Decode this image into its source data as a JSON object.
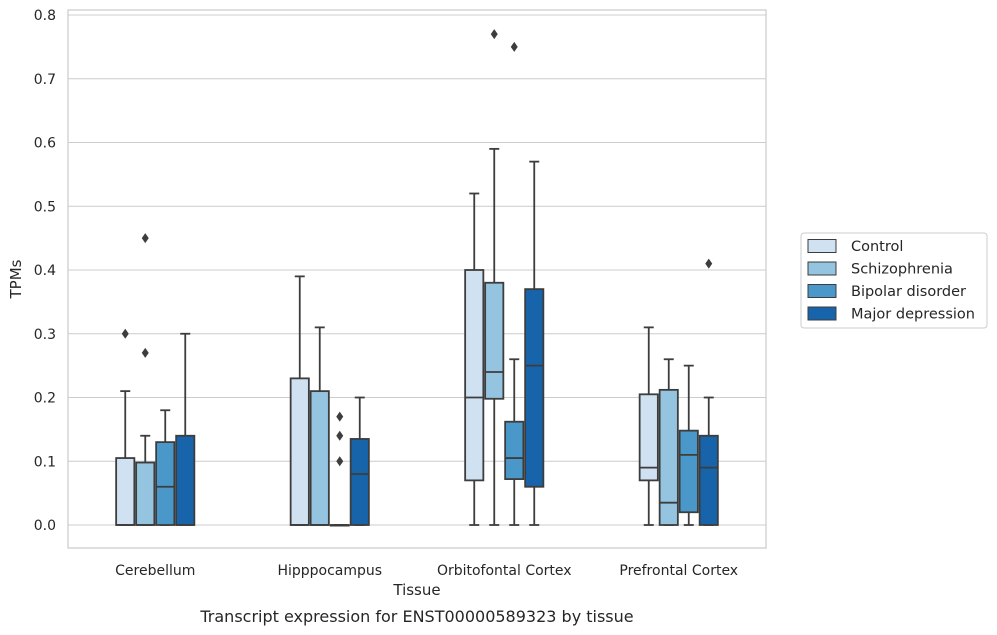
{
  "chart_data": {
    "type": "box",
    "title": "",
    "caption": "Transcript expression for ENST00000589323 by tissue",
    "xlabel": "Tissue",
    "ylabel": "TPMs",
    "ylim": [
      -0.038,
      0.812
    ],
    "yticks": [
      0.0,
      0.1,
      0.2,
      0.3,
      0.4,
      0.5,
      0.6,
      0.7,
      0.8
    ],
    "ytick_labels": [
      "0.0",
      "0.1",
      "0.2",
      "0.3",
      "0.4",
      "0.5",
      "0.6",
      "0.7",
      "0.8"
    ],
    "grid": true,
    "legend_position": "right",
    "categories": [
      "Cerebellum",
      "Hipppocampus",
      "Orbitofontal Cortex",
      "Prefrontal Cortex"
    ],
    "series": [
      {
        "name": "Control",
        "color": "#d0e1f2",
        "boxes": [
          {
            "whislo": 0.0,
            "q1": 0.0,
            "med": 0.0,
            "q3": 0.105,
            "whishi": 0.21,
            "fliers": [
              0.3
            ]
          },
          {
            "whislo": 0.0,
            "q1": 0.0,
            "med": 0.0,
            "q3": 0.23,
            "whishi": 0.39,
            "fliers": []
          },
          {
            "whislo": 0.0,
            "q1": 0.07,
            "med": 0.2,
            "q3": 0.4,
            "whishi": 0.52,
            "fliers": []
          },
          {
            "whislo": 0.0,
            "q1": 0.07,
            "med": 0.09,
            "q3": 0.205,
            "whishi": 0.31,
            "fliers": []
          }
        ]
      },
      {
        "name": "Schizophrenia",
        "color": "#94c4df",
        "boxes": [
          {
            "whislo": 0.0,
            "q1": 0.0,
            "med": 0.0,
            "q3": 0.098,
            "whishi": 0.14,
            "fliers": [
              0.27,
              0.45
            ]
          },
          {
            "whislo": 0.0,
            "q1": 0.0,
            "med": 0.0,
            "q3": 0.21,
            "whishi": 0.31,
            "fliers": []
          },
          {
            "whislo": 0.0,
            "q1": 0.198,
            "med": 0.24,
            "q3": 0.38,
            "whishi": 0.59,
            "fliers": [
              0.77
            ]
          },
          {
            "whislo": 0.0,
            "q1": 0.0,
            "med": 0.035,
            "q3": 0.212,
            "whishi": 0.26,
            "fliers": []
          }
        ]
      },
      {
        "name": "Bipolar disorder",
        "color": "#4a98c9",
        "boxes": [
          {
            "whislo": 0.0,
            "q1": 0.0,
            "med": 0.06,
            "q3": 0.13,
            "whishi": 0.18,
            "fliers": []
          },
          {
            "whislo": 0.0,
            "q1": 0.0,
            "med": 0.0,
            "q3": 0.0,
            "whishi": 0.0,
            "fliers": [
              0.1,
              0.14,
              0.17
            ]
          },
          {
            "whislo": 0.0,
            "q1": 0.072,
            "med": 0.105,
            "q3": 0.162,
            "whishi": 0.26,
            "fliers": [
              0.75
            ]
          },
          {
            "whislo": 0.0,
            "q1": 0.02,
            "med": 0.11,
            "q3": 0.148,
            "whishi": 0.25,
            "fliers": []
          }
        ]
      },
      {
        "name": "Major depression",
        "color": "#1764ab",
        "boxes": [
          {
            "whislo": 0.0,
            "q1": 0.0,
            "med": 0.0,
            "q3": 0.14,
            "whishi": 0.3,
            "fliers": []
          },
          {
            "whislo": 0.0,
            "q1": 0.0,
            "med": 0.08,
            "q3": 0.135,
            "whishi": 0.2,
            "fliers": []
          },
          {
            "whislo": 0.0,
            "q1": 0.06,
            "med": 0.25,
            "q3": 0.37,
            "whishi": 0.57,
            "fliers": []
          },
          {
            "whislo": 0.0,
            "q1": 0.0,
            "med": 0.09,
            "q3": 0.14,
            "whishi": 0.2,
            "fliers": [
              0.41
            ]
          }
        ]
      }
    ]
  }
}
